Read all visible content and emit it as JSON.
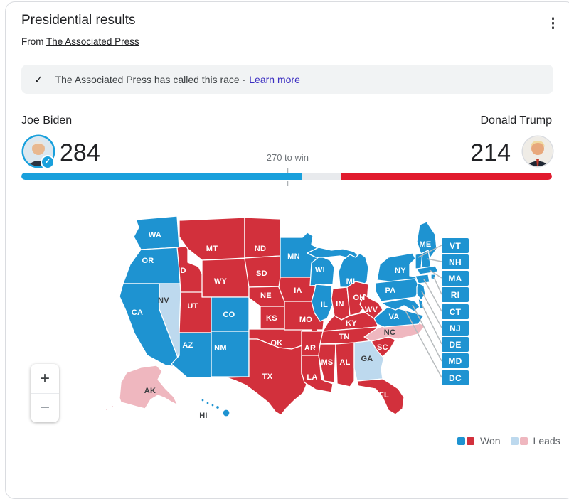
{
  "header": {
    "title": "Presidential results",
    "source_prefix": "From",
    "source_link": "The Associated Press",
    "menu_icon": "kebab-menu-icon",
    "menu_glyph": "⋮"
  },
  "banner": {
    "check_icon": "checkmark-icon",
    "check_glyph": "✓",
    "text": "The Associated Press has called this race ·",
    "link": "Learn more"
  },
  "race": {
    "threshold_label": "270 to win",
    "threshold": 270,
    "total": 538,
    "candidates": [
      {
        "name": "Joe Biden",
        "party": "dem",
        "electoral_votes": 284,
        "bar_color": "#19a0dc",
        "verified_badge": "✓"
      },
      {
        "name": "Donald Trump",
        "party": "gop",
        "electoral_votes": 214,
        "bar_color": "#e11b2e"
      }
    ]
  },
  "map": {
    "colors": {
      "dem_won": "#1e93d1",
      "gop_won": "#d2303c",
      "dem_leads": "#bdd9ee",
      "gop_leads": "#efb7bf"
    },
    "states": [
      {
        "abbr": "WA",
        "result": "dem_won"
      },
      {
        "abbr": "OR",
        "result": "dem_won"
      },
      {
        "abbr": "CA",
        "result": "dem_won"
      },
      {
        "abbr": "NV",
        "result": "dem_leads"
      },
      {
        "abbr": "ID",
        "result": "gop_won"
      },
      {
        "abbr": "MT",
        "result": "gop_won"
      },
      {
        "abbr": "WY",
        "result": "gop_won"
      },
      {
        "abbr": "UT",
        "result": "gop_won"
      },
      {
        "abbr": "CO",
        "result": "dem_won"
      },
      {
        "abbr": "AZ",
        "result": "dem_won"
      },
      {
        "abbr": "NM",
        "result": "dem_won"
      },
      {
        "abbr": "ND",
        "result": "gop_won"
      },
      {
        "abbr": "SD",
        "result": "gop_won"
      },
      {
        "abbr": "NE",
        "result": "gop_won"
      },
      {
        "abbr": "KS",
        "result": "gop_won"
      },
      {
        "abbr": "OK",
        "result": "gop_won"
      },
      {
        "abbr": "TX",
        "result": "gop_won"
      },
      {
        "abbr": "MN",
        "result": "dem_won"
      },
      {
        "abbr": "IA",
        "result": "gop_won"
      },
      {
        "abbr": "MO",
        "result": "gop_won"
      },
      {
        "abbr": "AR",
        "result": "gop_won"
      },
      {
        "abbr": "LA",
        "result": "gop_won"
      },
      {
        "abbr": "WI",
        "result": "dem_won"
      },
      {
        "abbr": "IL",
        "result": "dem_won"
      },
      {
        "abbr": "MI",
        "result": "dem_won"
      },
      {
        "abbr": "IN",
        "result": "gop_won"
      },
      {
        "abbr": "OH",
        "result": "gop_won"
      },
      {
        "abbr": "KY",
        "result": "gop_won"
      },
      {
        "abbr": "TN",
        "result": "gop_won"
      },
      {
        "abbr": "MS",
        "result": "gop_won"
      },
      {
        "abbr": "AL",
        "result": "gop_won"
      },
      {
        "abbr": "GA",
        "result": "dem_leads"
      },
      {
        "abbr": "FL",
        "result": "gop_won"
      },
      {
        "abbr": "SC",
        "result": "gop_won"
      },
      {
        "abbr": "NC",
        "result": "gop_leads"
      },
      {
        "abbr": "VA",
        "result": "dem_won"
      },
      {
        "abbr": "WV",
        "result": "gop_won"
      },
      {
        "abbr": "PA",
        "result": "dem_won"
      },
      {
        "abbr": "NY",
        "result": "dem_won"
      },
      {
        "abbr": "ME",
        "result": "dem_won"
      },
      {
        "abbr": "VT",
        "result": "dem_won"
      },
      {
        "abbr": "NH",
        "result": "dem_won"
      },
      {
        "abbr": "MA",
        "result": "dem_won"
      },
      {
        "abbr": "CT",
        "result": "dem_won"
      },
      {
        "abbr": "RI",
        "result": "dem_won"
      },
      {
        "abbr": "NJ",
        "result": "dem_won"
      },
      {
        "abbr": "DE",
        "result": "dem_won"
      },
      {
        "abbr": "MD",
        "result": "dem_won"
      },
      {
        "abbr": "AK",
        "result": "gop_leads"
      },
      {
        "abbr": "HI",
        "result": "dem_won",
        "dark_label": true
      }
    ],
    "tiles": [
      "VT",
      "NH",
      "MA",
      "RI",
      "CT",
      "NJ",
      "DE",
      "MD",
      "DC"
    ],
    "tile_color": "#1e93d1"
  },
  "zoom_controls": {
    "zoom_in": "+",
    "zoom_out": "−"
  },
  "legend": {
    "won_label": "Won",
    "leads_label": "Leads"
  }
}
